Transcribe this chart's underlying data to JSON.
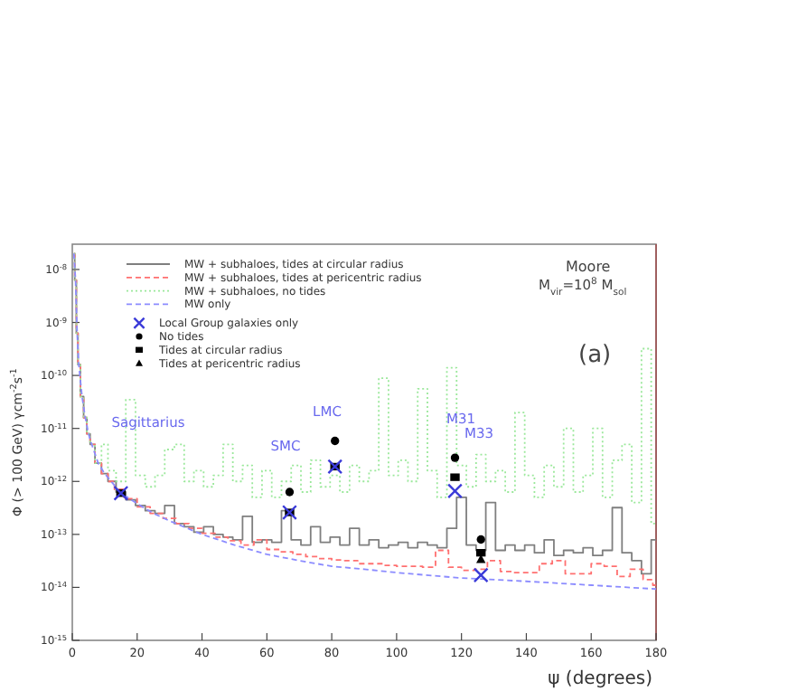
{
  "chart_data": {
    "type": "step",
    "xlabel": "ψ (degrees)",
    "ylabel": "Φ (> 100 GeV) γcm$^{-2}$s$^{-1}$",
    "log": "y",
    "legend": "top left",
    "xlim": [
      0,
      180
    ],
    "ylim": [
      1e-15,
      3e-08
    ],
    "xticks": [
      0,
      20,
      40,
      60,
      80,
      100,
      120,
      140,
      160,
      180
    ],
    "yticks": [
      {
        "value": 1e-15,
        "label": "10$^{-15}$"
      },
      {
        "value": 1e-14,
        "label": "10$^{-14}$"
      },
      {
        "value": 1e-13,
        "label": "10$^{-13}$"
      },
      {
        "value": 1e-12,
        "label": "10$^{-12}$"
      },
      {
        "value": 1e-11,
        "label": "10$^{-11}$"
      },
      {
        "value": 1e-10,
        "label": "10$^{-10}$"
      },
      {
        "value": 1e-09,
        "label": "10$^{-9}$"
      },
      {
        "value": 1e-08,
        "label": "10$^{-8}$"
      }
    ],
    "series": [
      {
        "name": "MW + subhaloes, tides at circular radius",
        "color": "#7f7f7f",
        "line_style": "solid",
        "x": [
          0.5,
          1,
          1.5,
          2,
          3,
          4,
          5,
          6,
          8,
          10,
          12,
          15,
          18,
          21,
          24,
          27,
          30,
          33,
          36,
          39,
          42,
          45,
          48,
          51,
          54,
          57,
          60,
          63,
          66,
          69,
          72,
          75,
          78,
          81,
          84,
          87,
          90,
          93,
          96,
          99,
          102,
          105,
          108,
          111,
          114,
          117,
          120,
          123,
          126,
          129,
          132,
          135,
          138,
          141,
          144,
          147,
          150,
          153,
          156,
          159,
          162,
          165,
          168,
          171,
          174,
          177,
          180
        ],
        "values": [
          2e-08,
          6.3e-09,
          6.3e-10,
          1.6e-10,
          4e-11,
          1.6e-11,
          7.9e-12,
          5e-12,
          2.2e-12,
          1.4e-12,
          1e-12,
          6.3e-13,
          4.5e-13,
          3.5e-13,
          2.8e-13,
          2.5e-13,
          3.5e-13,
          1.6e-13,
          1.4e-13,
          1.1e-13,
          1.4e-13,
          1e-13,
          8.9e-14,
          7.9e-14,
          2.2e-13,
          7.1e-14,
          7.9e-14,
          7.1e-14,
          2.8e-13,
          7.9e-14,
          6.3e-14,
          1.4e-13,
          7.1e-14,
          8.9e-14,
          6.3e-14,
          1.3e-13,
          6.3e-14,
          7.9e-14,
          5.6e-14,
          6.3e-14,
          7.1e-14,
          5.6e-14,
          7.1e-14,
          6.3e-14,
          5.6e-14,
          1.3e-13,
          5e-13,
          6.3e-14,
          5e-14,
          4e-13,
          5e-14,
          6.3e-14,
          5e-14,
          6.3e-14,
          4.5e-14,
          7.9e-14,
          4e-14,
          5e-14,
          4.5e-14,
          5.6e-14,
          4e-14,
          5e-14,
          3.2e-13,
          4.5e-14,
          3.2e-14,
          1.8e-14,
          7.9e-14
        ]
      },
      {
        "name": "MW + subhaloes, tides at pericentric radius",
        "color": "#ff7070",
        "line_style": "dashed",
        "x": [
          0.5,
          1,
          1.5,
          2,
          3,
          4,
          5,
          6,
          8,
          10,
          12,
          14,
          18,
          22,
          26,
          30,
          34,
          38,
          42,
          46,
          50,
          54,
          58,
          62,
          66,
          70,
          74,
          78,
          82,
          86,
          90,
          94,
          98,
          102,
          106,
          110,
          114,
          118,
          122,
          126,
          130,
          134,
          138,
          142,
          146,
          150,
          154,
          158,
          162,
          166,
          170,
          174,
          178,
          180
        ],
        "values": [
          2e-08,
          6.3e-09,
          6.3e-10,
          1.6e-10,
          4e-11,
          1.6e-11,
          7.9e-12,
          5e-12,
          2.2e-12,
          1.4e-12,
          1e-12,
          7.1e-13,
          4.7e-13,
          3.3e-13,
          2.5e-13,
          2e-13,
          1.6e-13,
          1.3e-13,
          1.05e-13,
          8.9e-14,
          7.6e-14,
          6.3e-14,
          7.9e-14,
          5.2e-14,
          4.7e-14,
          4.2e-14,
          3.8e-14,
          3.5e-14,
          3.3e-14,
          3.2e-14,
          2.8e-14,
          2.8e-14,
          2.6e-14,
          2.5e-14,
          2.5e-14,
          2.4e-14,
          5e-14,
          2.4e-14,
          2.1e-14,
          2.2e-14,
          3.2e-14,
          2e-14,
          1.9e-14,
          1.9e-14,
          2.8e-14,
          3.2e-14,
          1.8e-14,
          1.8e-14,
          2.8e-14,
          2.5e-14,
          1.6e-14,
          2.2e-14,
          1.4e-14,
          1.1e-14
        ]
      },
      {
        "name": "MW + subhaloes, no tides",
        "color": "#9be89b",
        "line_style": "dotted",
        "x": [
          0.5,
          1,
          1.5,
          2,
          3,
          4,
          5,
          6,
          8,
          10,
          12,
          15,
          18,
          21,
          24,
          27,
          30,
          33,
          36,
          39,
          42,
          45,
          48,
          51,
          54,
          57,
          60,
          63,
          66,
          69,
          72,
          75,
          78,
          81,
          84,
          87,
          90,
          93,
          96,
          99,
          102,
          105,
          108,
          111,
          114,
          117,
          120,
          123,
          126,
          129,
          132,
          135,
          138,
          141,
          144,
          147,
          150,
          153,
          156,
          159,
          162,
          165,
          168,
          171,
          174,
          177,
          180
        ],
        "values": [
          2e-08,
          6.3e-09,
          6.3e-10,
          1.6e-10,
          4e-11,
          1.6e-11,
          7.9e-12,
          5e-12,
          2.2e-12,
          5e-12,
          1.6e-12,
          1e-12,
          3.5e-11,
          1.3e-12,
          7.9e-13,
          1.3e-12,
          4e-12,
          5e-12,
          1e-12,
          1.6e-12,
          7.9e-13,
          1.3e-12,
          5e-12,
          1e-12,
          2e-12,
          5e-13,
          1.6e-12,
          5e-13,
          1e-12,
          2e-12,
          6.3e-13,
          2.5e-12,
          7.9e-13,
          1.3e-12,
          6.3e-13,
          2e-12,
          1e-12,
          1.6e-12,
          8.9e-11,
          1.3e-12,
          2.5e-12,
          1e-12,
          5.6e-11,
          1.6e-12,
          5e-13,
          1.4e-10,
          2e-12,
          7.9e-13,
          3.2e-12,
          1e-12,
          1.6e-12,
          6.3e-13,
          2e-11,
          1.3e-12,
          5e-13,
          2e-12,
          7.9e-13,
          1e-11,
          6.3e-13,
          1.3e-12,
          1e-11,
          5e-13,
          2.5e-12,
          5e-12,
          4e-13,
          3.2e-10,
          1.6e-13
        ]
      },
      {
        "name": "MW only",
        "type": "line",
        "color": "#8c8cff",
        "line_style": "dashed",
        "x": [
          0.5,
          1,
          1.5,
          2,
          3,
          4,
          5,
          6,
          8,
          10,
          12,
          15,
          20,
          25,
          30,
          40,
          50,
          60,
          70,
          80,
          90,
          100,
          120,
          140,
          160,
          180
        ],
        "values": [
          2e-08,
          6.3e-09,
          6.3e-10,
          1.6e-10,
          4e-11,
          1.6e-11,
          7.9e-12,
          5e-12,
          2.2e-12,
          1.4e-12,
          1e-12,
          6e-13,
          3.8e-13,
          2.5e-13,
          1.8e-13,
          1e-13,
          6.3e-14,
          4.2e-14,
          3.2e-14,
          2.5e-14,
          2.2e-14,
          1.9e-14,
          1.5e-14,
          1.3e-14,
          1.1e-14,
          9.3e-15
        ]
      },
      {
        "name": "Local Group galaxies only",
        "type": "scatter",
        "color": "#3a3ad8",
        "marker": "cross",
        "x": [
          15,
          67,
          81,
          118,
          126
        ],
        "values": [
          6e-13,
          2.6e-13,
          1.9e-12,
          6.6e-13,
          1.7e-14
        ]
      },
      {
        "name": "No tides",
        "type": "scatter",
        "color": "#000000",
        "marker": "circle",
        "x": [
          67,
          81,
          118,
          126
        ],
        "values": [
          6.3e-13,
          5.8e-12,
          2.8e-12,
          8e-14
        ]
      },
      {
        "name": "Tides at circular radius",
        "type": "scatter",
        "color": "#000000",
        "marker": "square",
        "x": [
          15,
          67,
          81,
          118,
          126
        ],
        "values": [
          6e-13,
          2.6e-13,
          1.9e-12,
          1.2e-12,
          4.5e-14
        ]
      },
      {
        "name": "Tides at pericentric radius",
        "type": "scatter",
        "color": "#000000",
        "marker": "triangle",
        "x": [
          126
        ],
        "values": [
          3.4e-14
        ]
      }
    ],
    "annotations": [
      "Sagittarius",
      "SMC",
      "LMC",
      "M31",
      "M33",
      "Moore",
      "M$_{vir}$=10$^{8}$ M$_{sol}$",
      "(a)"
    ]
  }
}
